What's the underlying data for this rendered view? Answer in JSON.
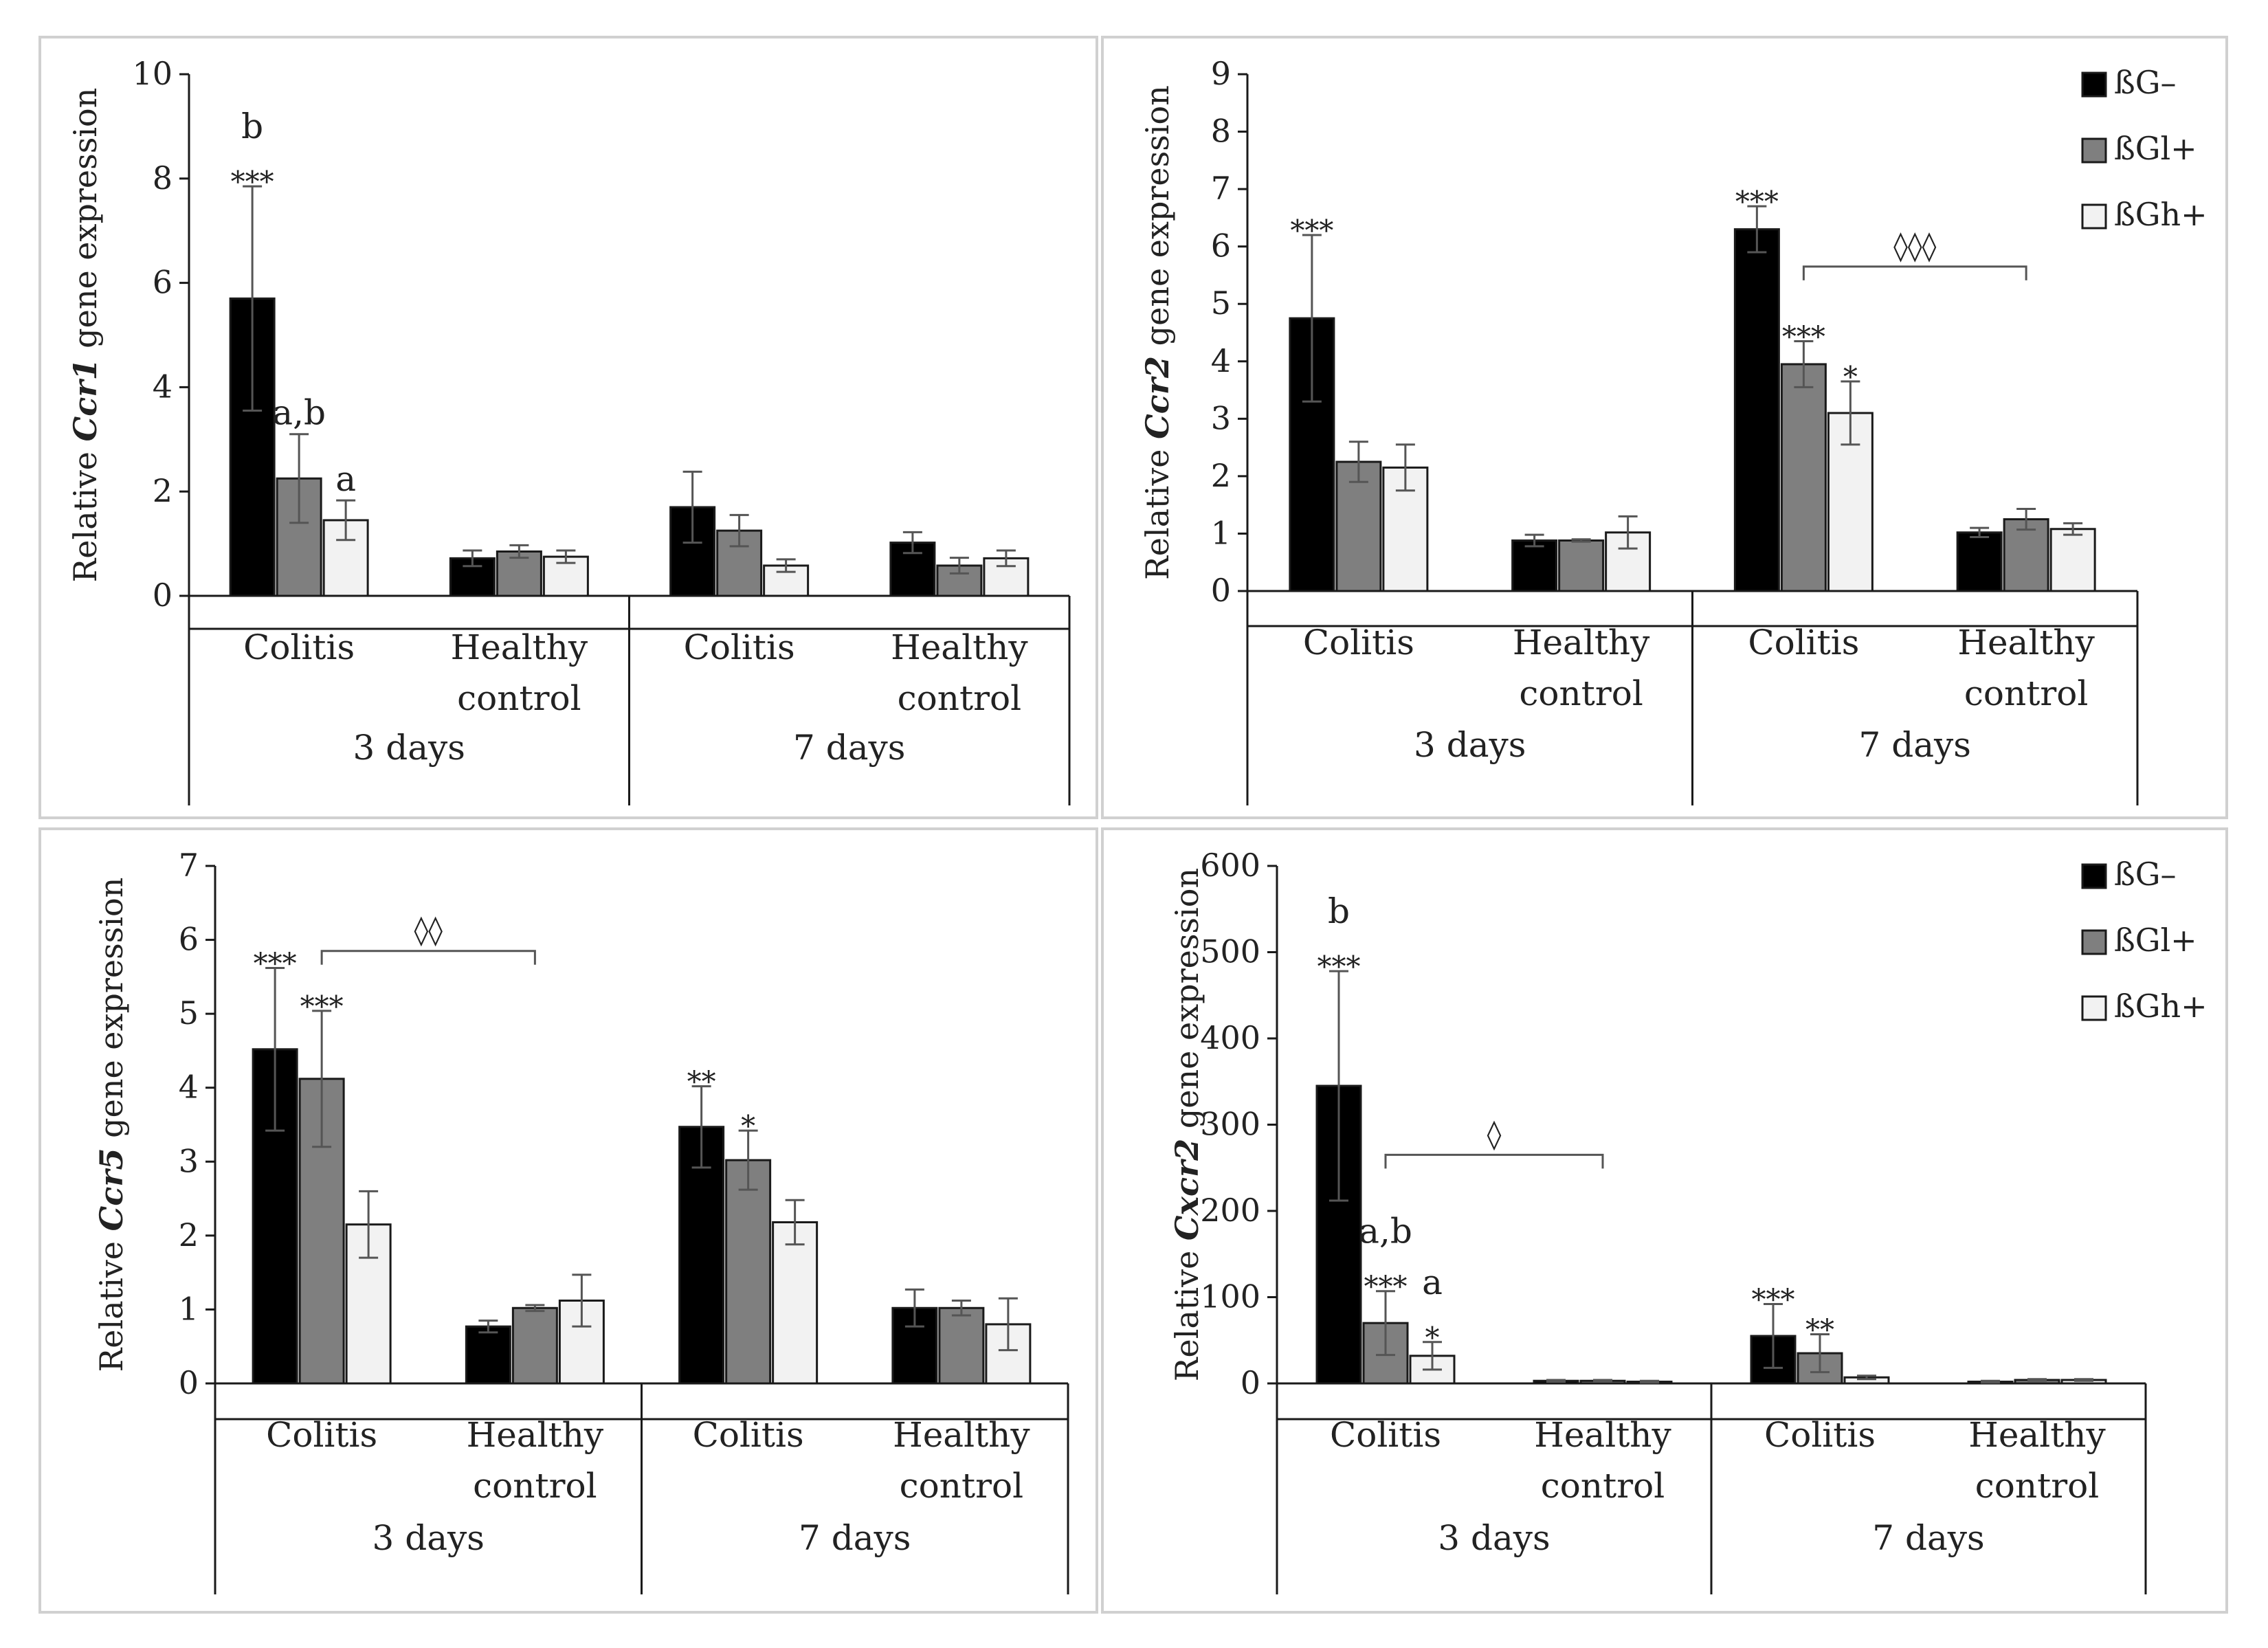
{
  "legend": {
    "entries": [
      {
        "label": "ßG–",
        "color": "#000000"
      },
      {
        "label": "ßGl+",
        "color": "#7f7f7f"
      },
      {
        "label": "ßGh+",
        "color": "#f2f2f2"
      }
    ]
  },
  "chart_data": [
    {
      "type": "bar",
      "ylabel_prefix": "Relative ",
      "ylabel_gene": "Ccr1",
      "ylabel_suffix": " gene expression",
      "ylim": [
        0,
        10
      ],
      "yticks": [
        0,
        2,
        4,
        6,
        8,
        10
      ],
      "periods": [
        "3 days",
        "7 days"
      ],
      "groups": [
        [
          "Colitis"
        ],
        [
          "Healthy",
          "control"
        ],
        [
          "Colitis"
        ],
        [
          "Healthy",
          "control"
        ]
      ],
      "series": [
        {
          "name": "ßG–",
          "values": [
            5.7,
            0.72,
            1.7,
            1.02
          ],
          "errors": [
            2.15,
            0.15,
            0.68,
            0.2
          ],
          "labels": [
            [
              "b",
              "***"
            ],
            [],
            [],
            []
          ]
        },
        {
          "name": "ßGl+",
          "values": [
            2.25,
            0.85,
            1.25,
            0.58
          ],
          "errors": [
            0.85,
            0.12,
            0.3,
            0.15
          ],
          "labels": [
            [
              "a,b"
            ],
            [],
            [],
            []
          ]
        },
        {
          "name": "ßGh+",
          "values": [
            1.45,
            0.75,
            0.58,
            0.72
          ],
          "errors": [
            0.38,
            0.12,
            0.12,
            0.15
          ],
          "labels": [
            [
              "a"
            ],
            [],
            [],
            []
          ]
        }
      ],
      "brackets": [],
      "show_legend": false
    },
    {
      "type": "bar",
      "ylabel_prefix": "Relative ",
      "ylabel_gene": "Ccr2",
      "ylabel_suffix": " gene expression",
      "ylim": [
        0,
        9
      ],
      "yticks": [
        0,
        1,
        2,
        3,
        4,
        5,
        6,
        7,
        8,
        9
      ],
      "periods": [
        "3 days",
        "7 days"
      ],
      "groups": [
        [
          "Colitis"
        ],
        [
          "Healthy",
          "control"
        ],
        [
          "Colitis"
        ],
        [
          "Healthy",
          "control"
        ]
      ],
      "series": [
        {
          "name": "ßG–",
          "values": [
            4.75,
            0.88,
            6.3,
            1.02
          ],
          "errors": [
            1.45,
            0.1,
            0.4,
            0.08
          ],
          "labels": [
            [
              "***"
            ],
            [],
            [
              "***"
            ],
            []
          ]
        },
        {
          "name": "ßGl+",
          "values": [
            2.25,
            0.88,
            3.95,
            1.25
          ],
          "errors": [
            0.35,
            0.02,
            0.4,
            0.18
          ],
          "labels": [
            [],
            [],
            [
              "***"
            ],
            []
          ]
        },
        {
          "name": "ßGh+",
          "values": [
            2.15,
            1.02,
            3.1,
            1.08
          ],
          "errors": [
            0.4,
            0.28,
            0.55,
            0.1
          ],
          "labels": [
            [],
            [],
            [
              "*"
            ],
            []
          ]
        }
      ],
      "brackets": [
        {
          "period": 1,
          "from_series": 1,
          "to_group": 3,
          "y": 5.65,
          "label": "◊◊◊"
        }
      ],
      "show_legend": true
    },
    {
      "type": "bar",
      "ylabel_prefix": "Relative ",
      "ylabel_gene": "Ccr5",
      "ylabel_suffix": " gene expression",
      "ylim": [
        0,
        7
      ],
      "yticks": [
        0,
        1,
        2,
        3,
        4,
        5,
        6,
        7
      ],
      "periods": [
        "3 days",
        "7 days"
      ],
      "groups": [
        [
          "Colitis"
        ],
        [
          "Healthy",
          "control"
        ],
        [
          "Colitis"
        ],
        [
          "Healthy",
          "control"
        ]
      ],
      "series": [
        {
          "name": "ßG–",
          "values": [
            4.52,
            0.77,
            3.47,
            1.02
          ],
          "errors": [
            1.1,
            0.08,
            0.55,
            0.25
          ],
          "labels": [
            [
              "***"
            ],
            [],
            [
              "**"
            ],
            []
          ]
        },
        {
          "name": "ßGl+",
          "values": [
            4.12,
            1.02,
            3.02,
            1.02
          ],
          "errors": [
            0.92,
            0.04,
            0.4,
            0.1
          ],
          "labels": [
            [
              "***"
            ],
            [],
            [
              "*"
            ],
            []
          ]
        },
        {
          "name": "ßGh+",
          "values": [
            2.15,
            1.12,
            2.18,
            0.8
          ],
          "errors": [
            0.45,
            0.35,
            0.3,
            0.35
          ],
          "labels": [
            [],
            [],
            [],
            []
          ]
        }
      ],
      "brackets": [
        {
          "period": 0,
          "from_series": 1,
          "to_group": 1,
          "y": 5.85,
          "label": "◊◊"
        }
      ],
      "show_legend": false
    },
    {
      "type": "bar",
      "ylabel_prefix": "Relative ",
      "ylabel_gene": "Cxcr2",
      "ylabel_suffix": " gene expression",
      "ylim": [
        0,
        600
      ],
      "yticks": [
        0,
        100,
        200,
        300,
        400,
        500,
        600
      ],
      "periods": [
        "3 days",
        "7 days"
      ],
      "groups": [
        [
          "Colitis"
        ],
        [
          "Healthy",
          "control"
        ],
        [
          "Colitis"
        ],
        [
          "Healthy",
          "control"
        ]
      ],
      "series": [
        {
          "name": "ßG–",
          "values": [
            345,
            3,
            55,
            2
          ],
          "errors": [
            133,
            1,
            37,
            1
          ],
          "labels": [
            [
              "b",
              "***"
            ],
            [],
            [
              "***"
            ],
            []
          ]
        },
        {
          "name": "ßGl+",
          "values": [
            70,
            3,
            35,
            4
          ],
          "errors": [
            37,
            1,
            22,
            1
          ],
          "labels": [
            [
              "a,b",
              "***"
            ],
            [],
            [
              "**"
            ],
            []
          ]
        },
        {
          "name": "ßGh+",
          "values": [
            32,
            2,
            7,
            4
          ],
          "errors": [
            16,
            1,
            2,
            1
          ],
          "labels": [
            [
              "a",
              "*"
            ],
            [],
            [],
            []
          ]
        }
      ],
      "brackets": [
        {
          "period": 0,
          "from_series": 1,
          "to_group": 1,
          "y": 265,
          "label": "◊"
        }
      ],
      "show_legend": true
    }
  ]
}
